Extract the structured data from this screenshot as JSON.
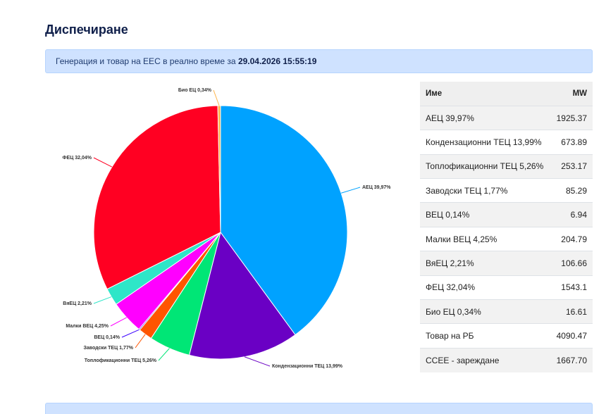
{
  "page": {
    "title": "Диспечиране"
  },
  "info_bar": {
    "prefix": "Генерация и товар на ЕЕС в реално време за",
    "timestamp": "29.04.2026 15:55:19"
  },
  "table": {
    "headers": {
      "name": "Име",
      "mw": "MW"
    },
    "rows": [
      {
        "name": "АЕЦ 39,97%",
        "mw": "1925.37"
      },
      {
        "name": "Кондензационни ТЕЦ 13,99%",
        "mw": "673.89"
      },
      {
        "name": "Топлофикационни ТЕЦ 5,26%",
        "mw": "253.17"
      },
      {
        "name": "Заводски ТЕЦ 1,77%",
        "mw": "85.29"
      },
      {
        "name": "ВЕЦ 0,14%",
        "mw": "6.94"
      },
      {
        "name": "Малки ВЕЦ 4,25%",
        "mw": "204.79"
      },
      {
        "name": "ВяЕЦ 2,21%",
        "mw": "106.66"
      },
      {
        "name": "ФЕЦ 32,04%",
        "mw": "1543.1"
      },
      {
        "name": "Био ЕЦ 0,34%",
        "mw": "16.61"
      },
      {
        "name": "Товар на РБ",
        "mw": "4090.47"
      },
      {
        "name": "CCEE - зареждане",
        "mw": "1667.70"
      }
    ]
  },
  "chart_data": {
    "type": "pie",
    "title": "",
    "series": [
      {
        "label": "АЕЦ 39,97%",
        "value": 1925.37,
        "color": "#00a2ff"
      },
      {
        "label": "Кондензационни ТЕЦ 13,99%",
        "value": 673.89,
        "color": "#6a00c4"
      },
      {
        "label": "Топлофикационни ТЕЦ 5,26%",
        "value": 253.17,
        "color": "#00e676"
      },
      {
        "label": "Заводски ТЕЦ 1,77%",
        "value": 85.29,
        "color": "#ff5500"
      },
      {
        "label": "ВЕЦ 0,14%",
        "value": 6.94,
        "color": "#3b00ff"
      },
      {
        "label": "Малки ВЕЦ 4,25%",
        "value": 204.79,
        "color": "#ff00ff"
      },
      {
        "label": "ВяЕЦ 2,21%",
        "value": 106.66,
        "color": "#2ee6c8"
      },
      {
        "label": "ФЕЦ 32,04%",
        "value": 1543.1,
        "color": "#ff0022"
      },
      {
        "label": "Био ЕЦ 0,34%",
        "value": 16.61,
        "color": "#ffb347"
      }
    ]
  }
}
